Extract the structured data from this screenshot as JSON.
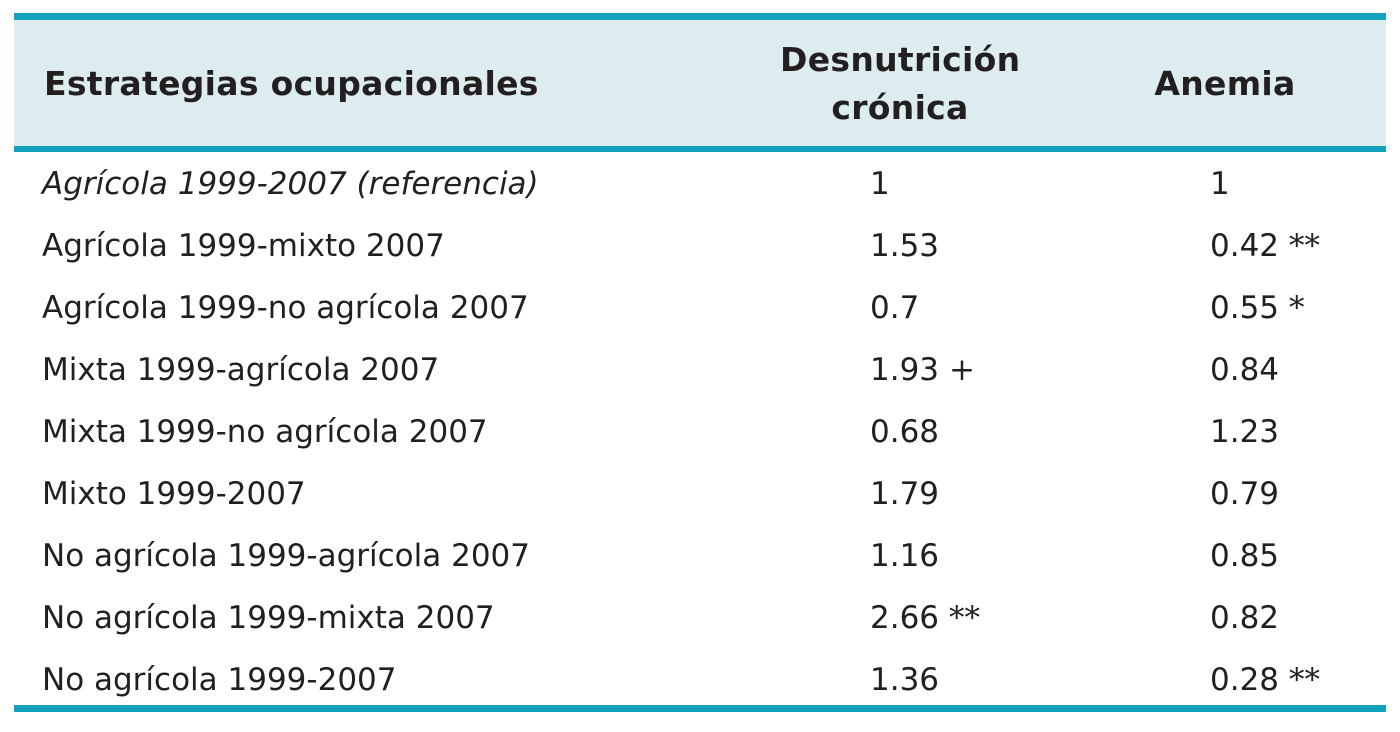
{
  "table": {
    "headers": {
      "strategy": "Estrategias ocupacionales",
      "malnutrition_line1": "Desnutrición",
      "malnutrition_line2": "crónica",
      "anemia": "Anemia"
    },
    "rows": [
      {
        "label": "Agrícola 1999-2007 (referencia)",
        "malnutrition": "1",
        "malnutrition_sig": "",
        "anemia": "1",
        "anemia_sig": ""
      },
      {
        "label": "Agrícola 1999-mixto 2007",
        "malnutrition": "1.53",
        "malnutrition_sig": "",
        "anemia": "0.42",
        "anemia_sig": "**"
      },
      {
        "label": "Agrícola 1999-no agrícola 2007",
        "malnutrition": "0.7",
        "malnutrition_sig": "",
        "anemia": "0.55",
        "anemia_sig": "*"
      },
      {
        "label": "Mixta 1999-agrícola 2007",
        "malnutrition": "1.93",
        "malnutrition_sig": "+",
        "anemia": "0.84",
        "anemia_sig": ""
      },
      {
        "label": "Mixta 1999-no agrícola 2007",
        "malnutrition": "0.68",
        "malnutrition_sig": "",
        "anemia": "1.23",
        "anemia_sig": ""
      },
      {
        "label": "Mixto 1999-2007",
        "malnutrition": "1.79",
        "malnutrition_sig": "",
        "anemia": "0.79",
        "anemia_sig": ""
      },
      {
        "label": "No agrícola 1999-agrícola 2007",
        "malnutrition": "1.16",
        "malnutrition_sig": "",
        "anemia": "0.85",
        "anemia_sig": ""
      },
      {
        "label": "No agrícola 1999-mixta 2007",
        "malnutrition": "2.66",
        "malnutrition_sig": "**",
        "anemia": "0.82",
        "anemia_sig": ""
      },
      {
        "label": "No agrícola 1999-2007",
        "malnutrition": "1.36",
        "malnutrition_sig": "",
        "anemia": "0.28",
        "anemia_sig": "**"
      }
    ]
  },
  "colors": {
    "rule": "#12a2bd",
    "header_background": "#dcecef",
    "text": "#231f20"
  }
}
